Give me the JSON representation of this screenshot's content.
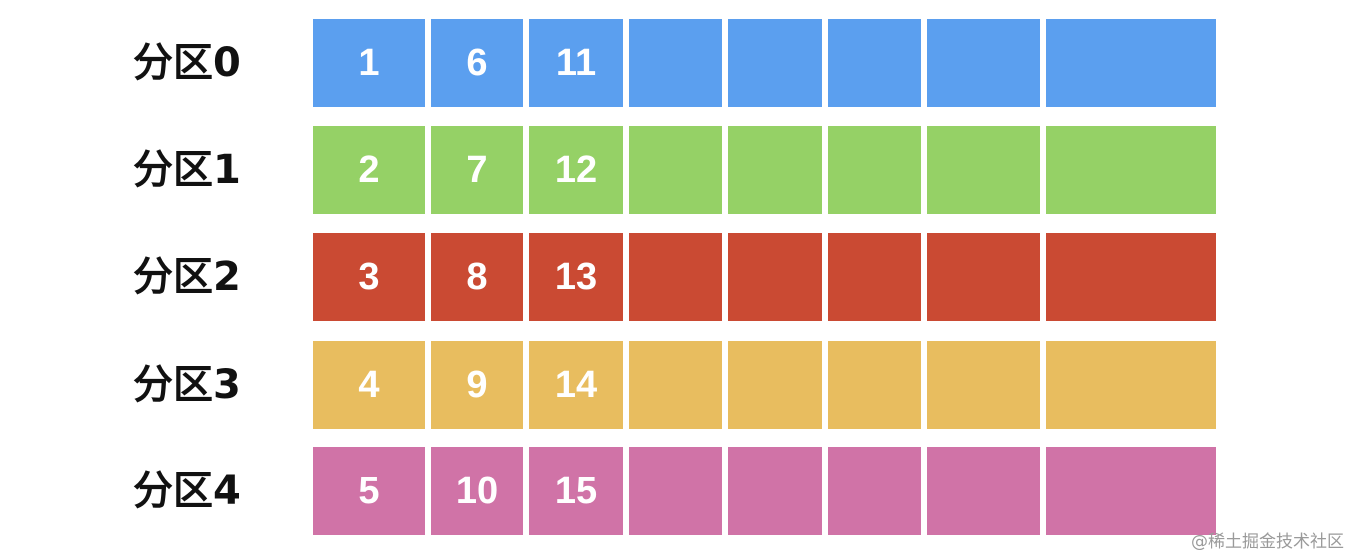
{
  "partitions": [
    {
      "label": "分区0",
      "color": "#5b9fef",
      "items": [
        "1",
        "6",
        "11",
        "",
        "",
        "",
        "",
        ""
      ]
    },
    {
      "label": "分区1",
      "color": "#95d166",
      "items": [
        "2",
        "7",
        "12",
        "",
        "",
        "",
        "",
        ""
      ]
    },
    {
      "label": "分区2",
      "color": "#ca4a33",
      "items": [
        "3",
        "8",
        "13",
        "",
        "",
        "",
        "",
        ""
      ]
    },
    {
      "label": "分区3",
      "color": "#e8bd5f",
      "items": [
        "4",
        "9",
        "14",
        "",
        "",
        "",
        "",
        ""
      ]
    },
    {
      "label": "分区4",
      "color": "#d073a7",
      "items": [
        "5",
        "10",
        "15",
        "",
        "",
        "",
        "",
        ""
      ]
    }
  ],
  "watermark": "@稀土掘金技术社区"
}
